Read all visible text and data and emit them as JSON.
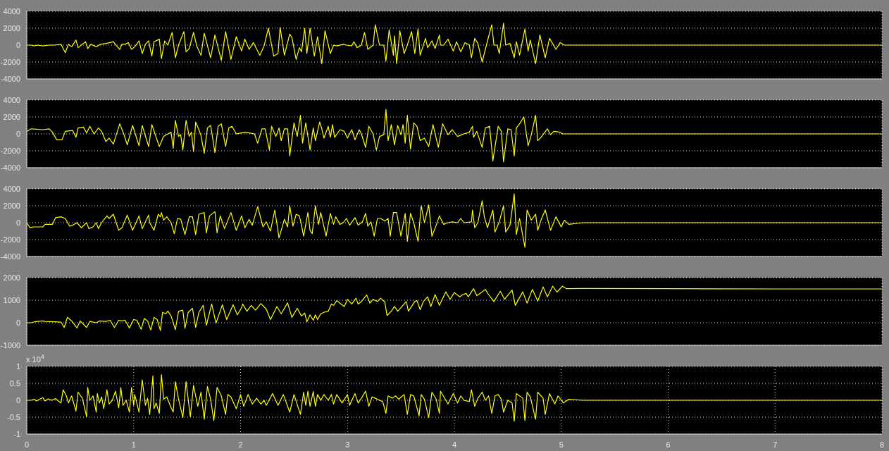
{
  "chart_data": [
    {
      "type": "line",
      "xlim": [
        0,
        8
      ],
      "xticks": [
        0,
        1,
        2,
        3,
        4,
        5,
        6,
        7,
        8
      ],
      "ylim": [
        -4000,
        4000
      ],
      "yticks": [
        -4000,
        -2000,
        0,
        2000,
        4000
      ],
      "grid": true,
      "tick_labels": "y",
      "x": [
        0,
        0.04,
        0.07,
        0.1,
        0.15,
        0.21,
        0.26,
        0.32,
        0.36,
        0.39,
        0.42,
        0.46,
        0.48,
        0.52,
        0.55,
        0.57,
        0.6,
        0.65,
        0.69,
        0.74,
        0.78,
        0.81,
        0.84,
        0.87,
        0.89,
        0.92,
        0.95,
        0.98,
        1.01,
        1.05,
        1.08,
        1.11,
        1.14,
        1.17,
        1.19,
        1.24,
        1.26,
        1.29,
        1.32,
        1.36,
        1.39,
        1.42,
        1.47,
        1.49,
        1.52,
        1.56,
        1.59,
        1.63,
        1.66,
        1.72,
        1.76,
        1.82,
        1.86,
        1.91,
        1.96,
        2.01,
        2.04,
        2.08,
        2.12,
        2.18,
        2.22,
        2.26,
        2.31,
        2.35,
        2.37,
        2.41,
        2.46,
        2.48,
        2.52,
        2.55,
        2.57,
        2.6,
        2.62,
        2.65,
        2.69,
        2.72,
        2.76,
        2.79,
        2.84,
        2.87,
        2.9,
        2.96,
        2.99,
        3.04,
        3.06,
        3.09,
        3.13,
        3.16,
        3.19,
        3.24,
        3.26,
        3.3,
        3.34,
        3.36,
        3.39,
        3.43,
        3.44,
        3.46,
        3.49,
        3.53,
        3.56,
        3.6,
        3.63,
        3.66,
        3.68,
        3.73,
        3.75,
        3.79,
        3.82,
        3.86,
        3.87,
        3.9,
        3.94,
        3.99,
        4.02,
        4.06,
        4.1,
        4.14,
        4.16,
        4.19,
        4.22,
        4.26,
        4.31,
        4.35,
        4.37,
        4.4,
        4.42,
        4.46,
        4.48,
        4.52,
        4.56,
        4.58,
        4.61,
        4.66,
        4.69,
        4.71,
        4.76,
        4.8,
        4.85,
        4.89,
        4.95,
        4.99,
        5.03,
        5.2,
        6,
        7,
        8
      ],
      "series": [
        {
          "color": "#ffff00",
          "values": [
            0,
            0,
            -100,
            0,
            -100,
            0,
            0,
            100,
            -900,
            100,
            -200,
            600,
            -300,
            100,
            400,
            -400,
            100,
            -200,
            100,
            200,
            300,
            400,
            -100,
            -500,
            100,
            100,
            300,
            -500,
            -200,
            500,
            -1000,
            100,
            500,
            -1300,
            400,
            700,
            -1600,
            500,
            0,
            1500,
            -1500,
            0,
            1600,
            -800,
            -400,
            1500,
            -100,
            -1200,
            1400,
            -1500,
            1200,
            -1800,
            1600,
            -1700,
            1000,
            -700,
            700,
            -500,
            300,
            -1200,
            -100,
            2000,
            -1300,
            -1000,
            2100,
            -1200,
            1300,
            900,
            -1700,
            -300,
            -800,
            2000,
            -1000,
            2000,
            -1300,
            1000,
            -2200,
            1700,
            -1000,
            0,
            -100,
            100,
            0,
            -100,
            400,
            -300,
            0,
            1500,
            -500,
            0,
            2400,
            0,
            0,
            -1900,
            1800,
            -1200,
            1100,
            -2200,
            1700,
            -1000,
            0,
            1600,
            -1000,
            1900,
            -1200,
            800,
            -300,
            500,
            -400,
            1200,
            0,
            0,
            700,
            -700,
            400,
            -800,
            300,
            0,
            -1500,
            800,
            200,
            -2000,
            500,
            2400,
            0,
            0,
            -1000,
            2600,
            0,
            200,
            -1500,
            400,
            -1200,
            1900,
            -700,
            600,
            -2200,
            1200,
            -1500,
            800,
            -500,
            300,
            0,
            0,
            0,
            0,
            0
          ]
        }
      ]
    },
    {
      "type": "line",
      "xlim": [
        0,
        8
      ],
      "xticks": [
        0,
        1,
        2,
        3,
        4,
        5,
        6,
        7,
        8
      ],
      "ylim": [
        -4000,
        4000
      ],
      "yticks": [
        -4000,
        -2000,
        0,
        2000,
        4000
      ],
      "grid": true,
      "tick_labels": "y",
      "x": [
        0,
        0.04,
        0.15,
        0.21,
        0.24,
        0.28,
        0.33,
        0.36,
        0.43,
        0.46,
        0.48,
        0.53,
        0.56,
        0.59,
        0.63,
        0.67,
        0.7,
        0.74,
        0.77,
        0.81,
        0.87,
        0.91,
        0.94,
        0.99,
        1.05,
        1.08,
        1.14,
        1.17,
        1.24,
        1.28,
        1.32,
        1.35,
        1.37,
        1.39,
        1.42,
        1.44,
        1.46,
        1.49,
        1.52,
        1.54,
        1.56,
        1.58,
        1.61,
        1.63,
        1.66,
        1.69,
        1.72,
        1.76,
        1.79,
        1.82,
        1.86,
        1.89,
        1.92,
        1.96,
        2,
        2.04,
        2.09,
        2.13,
        2.16,
        2.2,
        2.23,
        2.27,
        2.29,
        2.33,
        2.36,
        2.38,
        2.41,
        2.44,
        2.46,
        2.5,
        2.53,
        2.56,
        2.58,
        2.61,
        2.65,
        2.68,
        2.7,
        2.74,
        2.76,
        2.78,
        2.82,
        2.84,
        2.86,
        2.88,
        2.93,
        2.97,
        3,
        3.04,
        3.07,
        3.11,
        3.13,
        3.17,
        3.2,
        3.24,
        3.27,
        3.3,
        3.34,
        3.36,
        3.38,
        3.41,
        3.44,
        3.47,
        3.5,
        3.52,
        3.54,
        3.56,
        3.59,
        3.62,
        3.65,
        3.68,
        3.72,
        3.76,
        3.8,
        3.85,
        3.89,
        3.94,
        3.98,
        4.03,
        4.09,
        4.14,
        4.17,
        4.18,
        4.21,
        4.26,
        4.29,
        4.33,
        4.36,
        4.41,
        4.44,
        4.46,
        4.5,
        4.53,
        4.56,
        4.58,
        4.61,
        4.65,
        4.69,
        4.72,
        4.76,
        4.78,
        4.81,
        4.87,
        4.9,
        4.93,
        4.99,
        5.01,
        5.2,
        6,
        8
      ],
      "series": [
        {
          "color": "#ffff00",
          "values": [
            300,
            600,
            500,
            600,
            200,
            -700,
            -700,
            300,
            400,
            -400,
            700,
            800,
            100,
            900,
            0,
            700,
            300,
            -900,
            -500,
            -1200,
            1200,
            -100,
            -1300,
            1000,
            -1400,
            1000,
            -1500,
            1100,
            -1500,
            -300,
            0,
            200,
            -1700,
            1600,
            -300,
            -100,
            -1900,
            1600,
            -300,
            200,
            -2100,
            1400,
            500,
            -200,
            -2300,
            700,
            1000,
            -2200,
            900,
            1200,
            -1500,
            700,
            900,
            0,
            100,
            200,
            100,
            0,
            -1100,
            600,
            600,
            -1900,
            900,
            -300,
            700,
            -800,
            600,
            600,
            -2600,
            1300,
            -300,
            2200,
            -1100,
            1300,
            -1900,
            700,
            -800,
            1400,
            600,
            -500,
            900,
            -400,
            1100,
            -400,
            500,
            300,
            -500,
            500,
            -700,
            500,
            0,
            -1600,
            900,
            0,
            -1900,
            -300,
            -100,
            2900,
            -800,
            1100,
            -1300,
            1000,
            -100,
            1100,
            -1100,
            2200,
            -1800,
            1300,
            900,
            -800,
            -500,
            -1500,
            1100,
            -1600,
            1200,
            -100,
            500,
            -300,
            0,
            200,
            900,
            -400,
            300,
            -1600,
            700,
            900,
            -3200,
            900,
            300,
            -3300,
            600,
            500,
            -2600,
            700,
            1200,
            2000,
            -1400,
            -100,
            2200,
            -800,
            -400,
            600,
            -100,
            300,
            200,
            0,
            0,
            0,
            0
          ]
        }
      ]
    },
    {
      "type": "line",
      "xlim": [
        0,
        8
      ],
      "xticks": [
        0,
        1,
        2,
        3,
        4,
        5,
        6,
        7,
        8
      ],
      "ylim": [
        -4000,
        4000
      ],
      "yticks": [
        -4000,
        -2000,
        0,
        2000,
        4000
      ],
      "grid": true,
      "tick_labels": "y",
      "x": [
        0,
        0.03,
        0.06,
        0.15,
        0.17,
        0.24,
        0.27,
        0.32,
        0.36,
        0.4,
        0.43,
        0.47,
        0.51,
        0.56,
        0.58,
        0.62,
        0.65,
        0.67,
        0.7,
        0.75,
        0.77,
        0.81,
        0.86,
        0.89,
        0.94,
        0.99,
        1.05,
        1.08,
        1.14,
        1.15,
        1.19,
        1.23,
        1.25,
        1.26,
        1.28,
        1.31,
        1.35,
        1.38,
        1.41,
        1.44,
        1.48,
        1.52,
        1.55,
        1.58,
        1.61,
        1.66,
        1.68,
        1.71,
        1.76,
        1.78,
        1.81,
        1.85,
        1.91,
        1.96,
        2.01,
        2.04,
        2.08,
        2.11,
        2.16,
        2.21,
        2.24,
        2.28,
        2.32,
        2.36,
        2.41,
        2.44,
        2.46,
        2.49,
        2.52,
        2.55,
        2.57,
        2.59,
        2.63,
        2.65,
        2.67,
        2.7,
        2.73,
        2.75,
        2.8,
        2.84,
        2.87,
        2.89,
        2.93,
        2.96,
        2.99,
        3.02,
        3.07,
        3.1,
        3.14,
        3.17,
        3.19,
        3.22,
        3.25,
        3.28,
        3.31,
        3.35,
        3.38,
        3.4,
        3.43,
        3.46,
        3.5,
        3.54,
        3.56,
        3.59,
        3.62,
        3.66,
        3.69,
        3.72,
        3.76,
        3.79,
        3.83,
        3.86,
        3.9,
        3.94,
        3.98,
        4.03,
        4.06,
        4.09,
        4.16,
        4.17,
        4.19,
        4.22,
        4.26,
        4.28,
        4.31,
        4.36,
        4.38,
        4.42,
        4.46,
        4.48,
        4.52,
        4.56,
        4.58,
        4.61,
        4.66,
        4.68,
        4.72,
        4.76,
        4.78,
        4.81,
        4.85,
        4.9,
        4.95,
        5,
        5.03,
        5.07,
        5.2,
        6,
        8
      ],
      "series": [
        {
          "color": "#ffff00",
          "values": [
            0,
            -600,
            -500,
            -500,
            -200,
            -200,
            600,
            700,
            500,
            -400,
            -300,
            0,
            -600,
            0,
            -700,
            -500,
            0,
            -700,
            0,
            800,
            500,
            1000,
            -900,
            -600,
            900,
            -900,
            800,
            -700,
            900,
            0,
            -900,
            1000,
            700,
            1200,
            300,
            700,
            0,
            -1300,
            500,
            400,
            -1400,
            700,
            700,
            -1400,
            1000,
            1200,
            -1200,
            800,
            1300,
            -1200,
            800,
            -700,
            1200,
            -900,
            800,
            -600,
            400,
            -300,
            1900,
            -500,
            100,
            -1000,
            1500,
            -1800,
            400,
            -500,
            2000,
            -400,
            1000,
            800,
            -300,
            -1600,
            1200,
            -900,
            -1300,
            2000,
            -200,
            1200,
            -1600,
            1100,
            -200,
            700,
            -200,
            0,
            500,
            -300,
            600,
            -300,
            100,
            1100,
            -400,
            100,
            -1600,
            500,
            500,
            200,
            500,
            -1600,
            1200,
            1200,
            -1600,
            1100,
            -2200,
            1100,
            0,
            -2200,
            2000,
            0,
            2100,
            -1600,
            -300,
            800,
            -200,
            0,
            100,
            0,
            500,
            0,
            100,
            1500,
            -600,
            0,
            2600,
            700,
            -600,
            1500,
            -1100,
            100,
            2000,
            -1100,
            -300,
            3400,
            -1400,
            500,
            -2900,
            1500,
            300,
            1000,
            -900,
            300,
            1500,
            -900,
            700,
            -500,
            300,
            -200,
            0,
            0,
            0
          ]
        }
      ]
    },
    {
      "type": "line",
      "xlim": [
        0,
        8
      ],
      "xticks": [
        0,
        1,
        2,
        3,
        4,
        5,
        6,
        7,
        8
      ],
      "ylim": [
        -1000,
        2000
      ],
      "yticks": [
        -1000,
        0,
        1000,
        2000
      ],
      "grid": true,
      "tick_labels": "y",
      "x": [
        0,
        0.04,
        0.07,
        0.15,
        0.17,
        0.26,
        0.32,
        0.35,
        0.38,
        0.42,
        0.47,
        0.5,
        0.56,
        0.59,
        0.65,
        0.68,
        0.74,
        0.78,
        0.82,
        0.86,
        0.89,
        0.92,
        0.96,
        1,
        1.03,
        1.07,
        1.1,
        1.13,
        1.16,
        1.19,
        1.22,
        1.25,
        1.27,
        1.3,
        1.32,
        1.35,
        1.39,
        1.42,
        1.46,
        1.48,
        1.51,
        1.55,
        1.58,
        1.61,
        1.65,
        1.68,
        1.73,
        1.77,
        1.83,
        1.87,
        1.93,
        1.97,
        2.01,
        2.02,
        2.06,
        2.1,
        2.14,
        2.19,
        2.24,
        2.28,
        2.34,
        2.38,
        2.44,
        2.48,
        2.53,
        2.57,
        2.6,
        2.62,
        2.65,
        2.68,
        2.7,
        2.72,
        2.75,
        2.78,
        2.82,
        2.85,
        2.87,
        2.9,
        2.93,
        2.97,
        3,
        3.04,
        3.08,
        3.1,
        3.13,
        3.18,
        3.21,
        3.24,
        3.28,
        3.31,
        3.35,
        3.37,
        3.41,
        3.44,
        3.47,
        3.5,
        3.55,
        3.57,
        3.6,
        3.63,
        3.65,
        3.68,
        3.71,
        3.75,
        3.78,
        3.82,
        3.86,
        3.92,
        3.96,
        4,
        4.05,
        4.08,
        4.11,
        4.13,
        4.18,
        4.21,
        4.24,
        4.29,
        4.32,
        4.37,
        4.43,
        4.47,
        4.54,
        4.57,
        4.64,
        4.68,
        4.73,
        4.78,
        4.83,
        4.87,
        4.92,
        4.96,
        5.01,
        5.05,
        5.2,
        6,
        7,
        8
      ],
      "series": [
        {
          "color": "#ffff00",
          "values": [
            0,
            0,
            40,
            80,
            60,
            40,
            30,
            -210,
            240,
            80,
            -230,
            80,
            -210,
            60,
            0,
            80,
            60,
            110,
            -210,
            110,
            80,
            110,
            -230,
            140,
            110,
            -290,
            190,
            80,
            -320,
            240,
            140,
            -340,
            460,
            400,
            510,
            300,
            -310,
            510,
            560,
            -250,
            460,
            640,
            -210,
            460,
            770,
            -110,
            830,
            -20,
            800,
            140,
            800,
            350,
            670,
            830,
            510,
            770,
            560,
            850,
            610,
            140,
            720,
            400,
            880,
            240,
            640,
            300,
            430,
            40,
            350,
            110,
            350,
            140,
            400,
            460,
            510,
            830,
            770,
            980,
            870,
            720,
            1040,
            830,
            1090,
            830,
            940,
            1230,
            870,
            1040,
            940,
            1090,
            920,
            320,
            510,
            720,
            510,
            670,
            940,
            510,
            720,
            940,
            980,
            580,
            940,
            1150,
            720,
            1250,
            770,
            1370,
            1040,
            1340,
            1150,
            1250,
            1300,
            1150,
            1510,
            1200,
            1300,
            1480,
            1250,
            940,
            1400,
            1040,
            1450,
            770,
            1370,
            870,
            1480,
            960,
            1590,
            1150,
            1620,
            1360,
            1620,
            1510,
            1520,
            1510,
            1500,
            1500
          ]
        }
      ]
    },
    {
      "type": "line",
      "xlim": [
        0,
        8
      ],
      "xticks": [
        0,
        1,
        2,
        3,
        4,
        5,
        6,
        7,
        8
      ],
      "ylim": [
        -1,
        1
      ],
      "yticks": [
        -1,
        -0.5,
        0,
        0.5,
        1
      ],
      "grid": true,
      "annotations": [
        "x 10$^{4}$"
      ],
      "x": [
        0,
        0.04,
        0.07,
        0.09,
        0.12,
        0.15,
        0.17,
        0.2,
        0.23,
        0.27,
        0.29,
        0.32,
        0.34,
        0.37,
        0.39,
        0.42,
        0.46,
        0.48,
        0.52,
        0.53,
        0.56,
        0.57,
        0.59,
        0.62,
        0.65,
        0.66,
        0.68,
        0.7,
        0.72,
        0.75,
        0.77,
        0.8,
        0.83,
        0.86,
        0.88,
        0.9,
        0.93,
        0.96,
        0.98,
        1,
        1.01,
        1.05,
        1.08,
        1.11,
        1.13,
        1.15,
        1.18,
        1.19,
        1.21,
        1.24,
        1.26,
        1.28,
        1.31,
        1.35,
        1.37,
        1.39,
        1.42,
        1.46,
        1.49,
        1.53,
        1.56,
        1.6,
        1.63,
        1.66,
        1.69,
        1.72,
        1.75,
        1.78,
        1.82,
        1.86,
        1.88,
        1.91,
        1.96,
        2,
        2.03,
        2.07,
        2.11,
        2.15,
        2.19,
        2.22,
        2.24,
        2.3,
        2.35,
        2.4,
        2.46,
        2.5,
        2.56,
        2.59,
        2.61,
        2.63,
        2.65,
        2.68,
        2.7,
        2.72,
        2.75,
        2.78,
        2.82,
        2.85,
        2.87,
        2.9,
        2.95,
        3,
        3.02,
        3.07,
        3.1,
        3.13,
        3.17,
        3.2,
        3.23,
        3.26,
        3.3,
        3.33,
        3.36,
        3.38,
        3.42,
        3.45,
        3.48,
        3.53,
        3.56,
        3.59,
        3.62,
        3.67,
        3.69,
        3.72,
        3.76,
        3.79,
        3.83,
        3.86,
        3.87,
        3.94,
        3.99,
        4.03,
        4.06,
        4.09,
        4.14,
        4.16,
        4.19,
        4.22,
        4.26,
        4.29,
        4.32,
        4.35,
        4.38,
        4.41,
        4.44,
        4.46,
        4.5,
        4.54,
        4.56,
        4.58,
        4.64,
        4.66,
        4.68,
        4.71,
        4.76,
        4.78,
        4.83,
        4.85,
        4.89,
        4.94,
        4.97,
        5.02,
        5.07,
        5.2,
        6,
        8
      ],
      "series": [
        {
          "color": "#ffff00",
          "values": [
            0,
            0,
            0.03,
            -0.02,
            0.03,
            0.08,
            -0.02,
            0.04,
            0,
            0.05,
            -0.01,
            -0.08,
            0.31,
            0.13,
            -0.08,
            0.13,
            -0.32,
            0.24,
            0.06,
            -0.08,
            -0.49,
            0.38,
            0,
            0.13,
            -0.35,
            0.2,
            -0.08,
            0.1,
            -0.25,
            0.31,
            -0.11,
            0,
            0.27,
            -0.22,
            0.38,
            -0.15,
            0,
            -0.35,
            0.38,
            -0.15,
            0.17,
            -0.35,
            0.6,
            -0.15,
            0.06,
            -0.42,
            0.72,
            -0.25,
            -0.08,
            -0.39,
            0.76,
            0.03,
            0.1,
            -0.22,
            -0.35,
            0.55,
            0.03,
            -0.51,
            0.55,
            -0.49,
            0.44,
            -0.18,
            0.24,
            -0.56,
            0.41,
            0.03,
            -0.6,
            0.38,
            0.13,
            -0.42,
            0.17,
            0.1,
            -0.25,
            0.17,
            -0.18,
            0.17,
            -0.11,
            0.06,
            -0.11,
            0,
            -0.15,
            0.2,
            -0.15,
            0.17,
            -0.35,
            0.17,
            -0.42,
            0.24,
            -0.15,
            0.27,
            -0.18,
            0.26,
            -0.18,
            0.17,
            0,
            0.17,
            0,
            0.17,
            -0.11,
            0.17,
            -0.08,
            0.17,
            -0.15,
            0.2,
            -0.08,
            0.06,
            0.27,
            -0.18,
            0.1,
            0.06,
            0,
            -0.04,
            -0.39,
            0.13,
            0.06,
            0.13,
            0.03,
            0.17,
            -0.42,
            0.17,
            0.13,
            -0.46,
            0.17,
            0.03,
            -0.51,
            0.24,
            0.03,
            -0.39,
            0.27,
            -0.11,
            0.2,
            -0.08,
            0.13,
            0,
            -0.04,
            0.31,
            -0.18,
            0.06,
            0.24,
            0,
            0.13,
            -0.39,
            0.13,
            0.17,
            0.03,
            -0.35,
            0,
            -0.08,
            -0.62,
            0.2,
            0.06,
            -0.6,
            0.24,
            0.1,
            -0.56,
            0.24,
            0.06,
            -0.42,
            0.2,
            -0.11,
            0.13,
            -0.08,
            0.03,
            0,
            0,
            0
          ]
        }
      ]
    }
  ]
}
